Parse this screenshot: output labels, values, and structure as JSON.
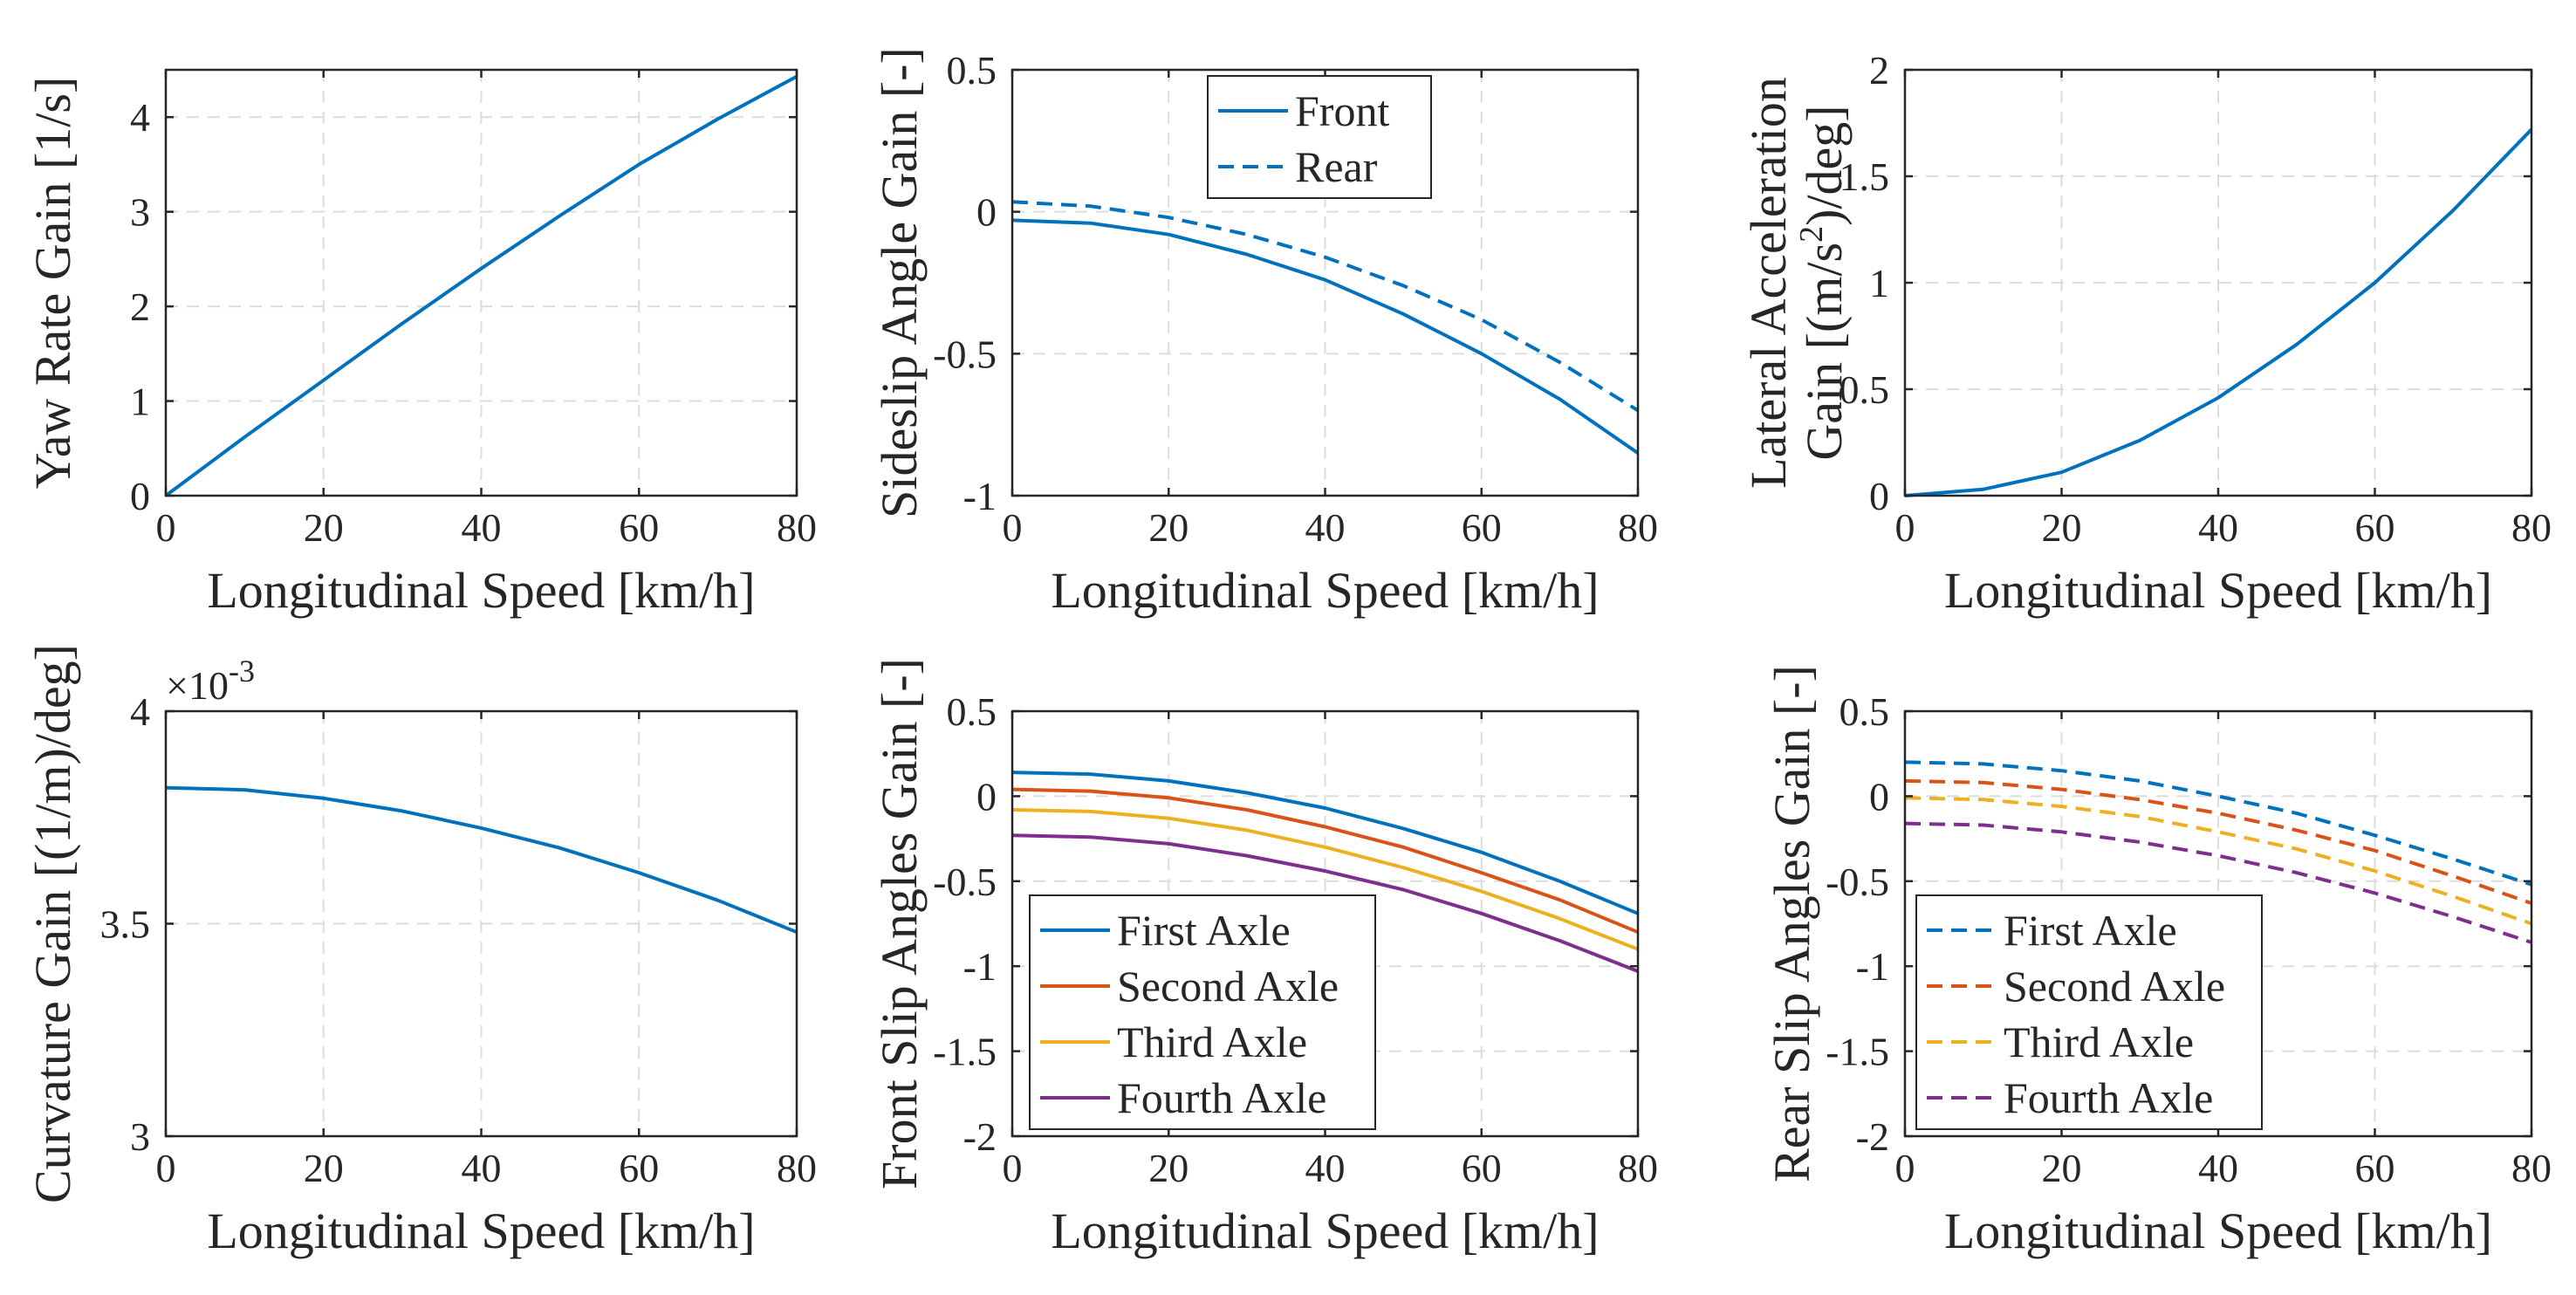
{
  "colors": {
    "blue": "#0072BD",
    "orange": "#D95319",
    "yellow": "#EDB120",
    "purple": "#7E2F8E"
  },
  "chart_data": [
    {
      "id": "yaw",
      "type": "line",
      "xlabel": "Longitudinal Speed [km/h]",
      "ylabel": "Yaw Rate Gain [1/s]",
      "xlim": [
        0,
        80
      ],
      "ylim": [
        0,
        4.5
      ],
      "xticks": [
        0,
        20,
        40,
        60,
        80
      ],
      "xtick_labels": [
        "0",
        "20",
        "40",
        "60",
        "80"
      ],
      "yticks": [
        0,
        1,
        2,
        3,
        4
      ],
      "ytick_labels": [
        "0",
        "1",
        "2",
        "3",
        "4"
      ],
      "x": [
        0,
        10,
        20,
        30,
        40,
        50,
        60,
        70,
        80
      ],
      "series": [
        {
          "name": "Yaw Rate Gain",
          "color": "blue",
          "dash": false,
          "values": [
            0,
            0.62,
            1.22,
            1.82,
            2.4,
            2.96,
            3.5,
            3.98,
            4.43
          ]
        }
      ]
    },
    {
      "id": "sideslip",
      "type": "line",
      "xlabel": "Longitudinal Speed [km/h]",
      "ylabel": "Sideslip Angle Gain [-]",
      "xlim": [
        0,
        80
      ],
      "ylim": [
        -1,
        0.5
      ],
      "xticks": [
        0,
        20,
        40,
        60,
        80
      ],
      "xtick_labels": [
        "0",
        "20",
        "40",
        "60",
        "80"
      ],
      "yticks": [
        -1,
        -0.5,
        0,
        0.5
      ],
      "ytick_labels": [
        "-1",
        "-0.5",
        "0",
        "0.5"
      ],
      "legend": "top-center",
      "x": [
        0,
        10,
        20,
        30,
        40,
        50,
        60,
        70,
        80
      ],
      "series": [
        {
          "name": "Front",
          "color": "blue",
          "dash": false,
          "values": [
            -0.03,
            -0.04,
            -0.08,
            -0.15,
            -0.24,
            -0.36,
            -0.5,
            -0.66,
            -0.85
          ]
        },
        {
          "name": "Rear",
          "color": "blue",
          "dash": true,
          "values": [
            0.035,
            0.02,
            -0.02,
            -0.08,
            -0.16,
            -0.26,
            -0.38,
            -0.53,
            -0.7
          ]
        }
      ]
    },
    {
      "id": "latacc",
      "type": "line",
      "xlabel": "Longitudinal Speed [km/h]",
      "ylabel_line1": "Lateral Acceleration",
      "ylabel_line2_a": "Gain [(m/s",
      "ylabel_line2_sup": "2",
      "ylabel_line2_b": ")/deg]",
      "xlim": [
        0,
        80
      ],
      "ylim": [
        0,
        2
      ],
      "xticks": [
        0,
        20,
        40,
        60,
        80
      ],
      "xtick_labels": [
        "0",
        "20",
        "40",
        "60",
        "80"
      ],
      "yticks": [
        0,
        0.5,
        1,
        1.5,
        2
      ],
      "ytick_labels": [
        "0",
        "0.5",
        "1",
        "1.5",
        "2"
      ],
      "x": [
        0,
        10,
        20,
        30,
        40,
        50,
        60,
        70,
        80
      ],
      "series": [
        {
          "name": "Lateral Acceleration Gain",
          "color": "blue",
          "dash": false,
          "values": [
            0,
            0.03,
            0.11,
            0.26,
            0.46,
            0.71,
            1.0,
            1.34,
            1.72
          ]
        }
      ]
    },
    {
      "id": "curvature",
      "type": "line",
      "xlabel": "Longitudinal Speed [km/h]",
      "ylabel": "Curvature Gain [(1/m)/deg]",
      "exponent_base": "×10",
      "exponent_power": "-3",
      "xlim": [
        0,
        80
      ],
      "ylim": [
        3,
        4
      ],
      "xticks": [
        0,
        20,
        40,
        60,
        80
      ],
      "xtick_labels": [
        "0",
        "20",
        "40",
        "60",
        "80"
      ],
      "yticks": [
        3,
        3.5,
        4
      ],
      "ytick_labels": [
        "3",
        "3.5",
        "4"
      ],
      "x": [
        0,
        10,
        20,
        30,
        40,
        50,
        60,
        70,
        80
      ],
      "series": [
        {
          "name": "Curvature Gain",
          "color": "blue",
          "dash": false,
          "values": [
            3.82,
            3.815,
            3.795,
            3.765,
            3.725,
            3.678,
            3.62,
            3.555,
            3.48
          ]
        }
      ]
    },
    {
      "id": "frontslip",
      "type": "line",
      "xlabel": "Longitudinal Speed [km/h]",
      "ylabel": "Front Slip Angles Gain [-]",
      "xlim": [
        0,
        80
      ],
      "ylim": [
        -2,
        0.5
      ],
      "xticks": [
        0,
        20,
        40,
        60,
        80
      ],
      "xtick_labels": [
        "0",
        "20",
        "40",
        "60",
        "80"
      ],
      "yticks": [
        -2,
        -1.5,
        -1,
        -0.5,
        0,
        0.5
      ],
      "ytick_labels": [
        "-2",
        "-1.5",
        "-1",
        "-0.5",
        "0",
        "0.5"
      ],
      "legend": "bottom-left",
      "x": [
        0,
        10,
        20,
        30,
        40,
        50,
        60,
        70,
        80
      ],
      "series": [
        {
          "name": "First Axle",
          "color": "blue",
          "dash": false,
          "values": [
            0.14,
            0.13,
            0.09,
            0.02,
            -0.07,
            -0.19,
            -0.33,
            -0.5,
            -0.69
          ]
        },
        {
          "name": "Second Axle",
          "color": "orange",
          "dash": false,
          "values": [
            0.04,
            0.03,
            -0.01,
            -0.08,
            -0.18,
            -0.3,
            -0.45,
            -0.61,
            -0.8
          ]
        },
        {
          "name": "Third Axle",
          "color": "yellow",
          "dash": false,
          "values": [
            -0.08,
            -0.09,
            -0.13,
            -0.2,
            -0.3,
            -0.42,
            -0.56,
            -0.72,
            -0.9
          ]
        },
        {
          "name": "Fourth Axle",
          "color": "purple",
          "dash": false,
          "values": [
            -0.23,
            -0.24,
            -0.28,
            -0.35,
            -0.44,
            -0.55,
            -0.69,
            -0.85,
            -1.03
          ]
        }
      ]
    },
    {
      "id": "rearslip",
      "type": "line",
      "xlabel": "Longitudinal Speed [km/h]",
      "ylabel": "Rear Slip Angles Gain [-]",
      "xlim": [
        0,
        80
      ],
      "ylim": [
        -2,
        0.5
      ],
      "xticks": [
        0,
        20,
        40,
        60,
        80
      ],
      "xtick_labels": [
        "0",
        "20",
        "40",
        "60",
        "80"
      ],
      "yticks": [
        -2,
        -1.5,
        -1,
        -0.5,
        0,
        0.5
      ],
      "ytick_labels": [
        "-2",
        "-1.5",
        "-1",
        "-0.5",
        "0",
        "0.5"
      ],
      "legend": "bottom-left",
      "x": [
        0,
        10,
        20,
        30,
        40,
        50,
        60,
        70,
        80
      ],
      "series": [
        {
          "name": "First Axle",
          "color": "blue",
          "dash": true,
          "values": [
            0.2,
            0.19,
            0.15,
            0.09,
            0.0,
            -0.1,
            -0.23,
            -0.37,
            -0.52
          ]
        },
        {
          "name": "Second Axle",
          "color": "orange",
          "dash": true,
          "values": [
            0.09,
            0.08,
            0.04,
            -0.02,
            -0.1,
            -0.2,
            -0.32,
            -0.47,
            -0.63
          ]
        },
        {
          "name": "Third Axle",
          "color": "yellow",
          "dash": true,
          "values": [
            -0.01,
            -0.02,
            -0.06,
            -0.12,
            -0.21,
            -0.31,
            -0.44,
            -0.59,
            -0.75
          ]
        },
        {
          "name": "Fourth Axle",
          "color": "purple",
          "dash": true,
          "values": [
            -0.16,
            -0.17,
            -0.21,
            -0.27,
            -0.35,
            -0.45,
            -0.57,
            -0.71,
            -0.86
          ]
        }
      ]
    }
  ]
}
